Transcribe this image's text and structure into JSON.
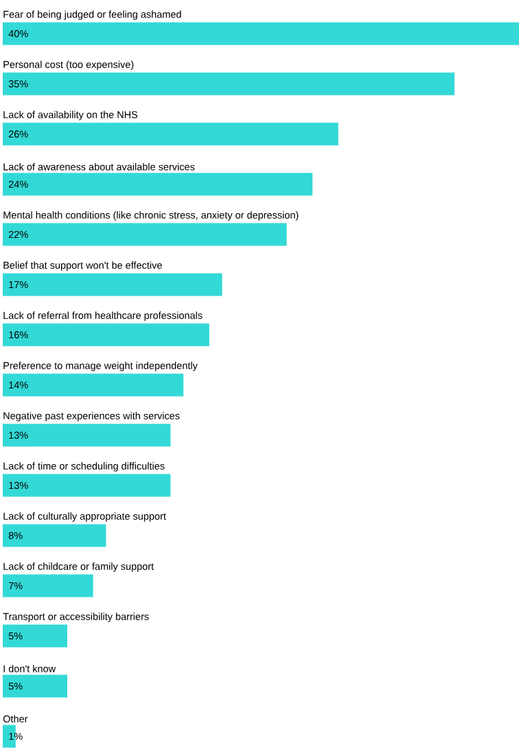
{
  "chart_data": {
    "type": "bar",
    "orientation": "horizontal",
    "color": "#33d9d6",
    "categories": [
      "Fear of being judged or feeling ashamed",
      "Personal cost (too expensive)",
      "Lack of availability on the NHS",
      "Lack of awareness about available services",
      "Mental health conditions (like chronic stress, anxiety or depression)",
      "Belief that support won't be effective",
      "Lack of referral from healthcare professionals",
      "Preference to manage weight independently",
      "Negative past experiences with services",
      "Lack of time or scheduling difficulties",
      "Lack of culturally appropriate support",
      "Lack of childcare or family support",
      "Transport or accessibility barriers",
      "I don't know",
      "Other"
    ],
    "values": [
      40,
      35,
      26,
      24,
      22,
      17,
      16,
      14,
      13,
      13,
      8,
      7,
      5,
      5,
      1
    ],
    "value_labels": [
      "40%",
      "35%",
      "26%",
      "24%",
      "22%",
      "17%",
      "16%",
      "14%",
      "13%",
      "13%",
      "8%",
      "7%",
      "5%",
      "5%",
      "1%"
    ]
  }
}
